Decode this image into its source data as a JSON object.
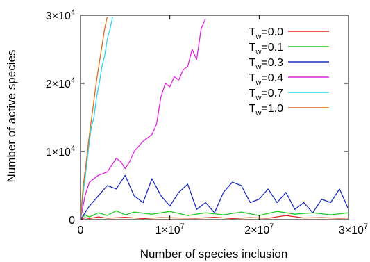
{
  "chart_data": {
    "type": "line",
    "xlabel": "Number of species inclusion",
    "ylabel": "Number of active species",
    "xlim": [
      0,
      30000000
    ],
    "ylim": [
      0,
      30000
    ],
    "x_ticks": [
      {
        "value": 0,
        "label": "0",
        "mant": "",
        "exp": ""
      },
      {
        "value": 10000000,
        "label": "",
        "mant": "1×10",
        "exp": "7"
      },
      {
        "value": 20000000,
        "label": "",
        "mant": "2×10",
        "exp": "7"
      },
      {
        "value": 30000000,
        "label": "",
        "mant": "3×10",
        "exp": "7"
      }
    ],
    "y_ticks": [
      {
        "value": 0,
        "label": "0",
        "mant": "",
        "exp": ""
      },
      {
        "value": 10000,
        "label": "",
        "mant": "1×10",
        "exp": "4"
      },
      {
        "value": 20000,
        "label": "",
        "mant": "2×10",
        "exp": "4"
      },
      {
        "value": 30000,
        "label": "",
        "mant": "3×10",
        "exp": "4"
      }
    ],
    "legend_position": "top-right",
    "grid": false,
    "series": [
      {
        "name": "Tw=0.0",
        "base": "T",
        "sub": "w",
        "suffix": "=0.0",
        "color": "#e02020",
        "x": [
          0,
          500000,
          1000000,
          2000000,
          3000000,
          5000000,
          7000000,
          9000000,
          11000000,
          13000000,
          15000000,
          17000000,
          19000000,
          21000000,
          23000000,
          25000000,
          27000000,
          29000000,
          30000000
        ],
        "y": [
          0,
          300,
          150,
          400,
          200,
          350,
          150,
          300,
          250,
          200,
          350,
          150,
          300,
          200,
          600,
          250,
          300,
          200,
          250
        ]
      },
      {
        "name": "Tw=0.1",
        "base": "T",
        "sub": "w",
        "suffix": "=0.1",
        "color": "#22cc22",
        "x": [
          0,
          500000,
          1000000,
          2000000,
          3000000,
          4000000,
          5000000,
          6000000,
          8000000,
          10000000,
          12000000,
          14000000,
          16000000,
          18000000,
          20000000,
          22000000,
          24000000,
          26000000,
          28000000,
          30000000
        ],
        "y": [
          0,
          700,
          400,
          1000,
          600,
          1300,
          700,
          1100,
          800,
          1200,
          600,
          1000,
          700,
          1100,
          600,
          1200,
          800,
          1000,
          700,
          1000
        ]
      },
      {
        "name": "Tw=0.3",
        "base": "T",
        "sub": "w",
        "suffix": "=0.3",
        "color": "#1a2bbf",
        "x": [
          0,
          1000000,
          2000000,
          3000000,
          4000000,
          5000000,
          6000000,
          7000000,
          8000000,
          9000000,
          10000000,
          11000000,
          12000000,
          13000000,
          14000000,
          15000000,
          16000000,
          17000000,
          18000000,
          19000000,
          20000000,
          21000000,
          22000000,
          23000000,
          24000000,
          25000000,
          26000000,
          27000000,
          28000000,
          29000000,
          30000000
        ],
        "y": [
          0,
          2000,
          3500,
          5000,
          4500,
          6500,
          3500,
          2500,
          6000,
          3500,
          2000,
          4000,
          5200,
          1500,
          2500,
          1000,
          4000,
          5500,
          5000,
          2500,
          3000,
          4500,
          2500,
          4000,
          1500,
          2500,
          1000,
          3000,
          2500,
          4500,
          1500
        ]
      },
      {
        "name": "Tw=0.4",
        "base": "T",
        "sub": "w",
        "suffix": "=0.4",
        "color": "#e020e0",
        "x": [
          0,
          500000,
          1000000,
          1500000,
          2000000,
          3000000,
          3500000,
          4000000,
          4500000,
          5000000,
          5500000,
          6000000,
          7000000,
          8000000,
          8500000,
          9000000,
          9500000,
          10000000,
          10500000,
          11000000,
          11500000,
          12000000,
          12500000,
          13000000,
          13500000,
          14000000
        ],
        "y": [
          0,
          3500,
          5500,
          6000,
          6500,
          7000,
          8000,
          9000,
          8500,
          7500,
          8500,
          10000,
          11500,
          12500,
          14000,
          18000,
          20000,
          19500,
          21000,
          20500,
          22000,
          22500,
          25000,
          23500,
          28000,
          29500
        ]
      },
      {
        "name": "Tw=0.7",
        "base": "T",
        "sub": "w",
        "suffix": "=0.7",
        "color": "#22d8e8",
        "x": [
          0,
          300000,
          600000,
          900000,
          1200000,
          1500000,
          1800000,
          2100000,
          2400000,
          2700000,
          3000000,
          3300000,
          3600000
        ],
        "y": [
          0,
          4000,
          7000,
          10500,
          13500,
          15000,
          18000,
          20000,
          22500,
          24000,
          26500,
          28000,
          29800
        ]
      },
      {
        "name": "Tw=1.0",
        "base": "T",
        "sub": "w",
        "suffix": "=1.0",
        "color": "#e06b1c",
        "x": [
          0,
          300000,
          600000,
          900000,
          1200000,
          1500000,
          1800000,
          2100000,
          2400000,
          2700000,
          3000000
        ],
        "y": [
          0,
          5000,
          8000,
          11500,
          14500,
          17500,
          20500,
          23000,
          25500,
          28000,
          29800
        ]
      }
    ]
  }
}
